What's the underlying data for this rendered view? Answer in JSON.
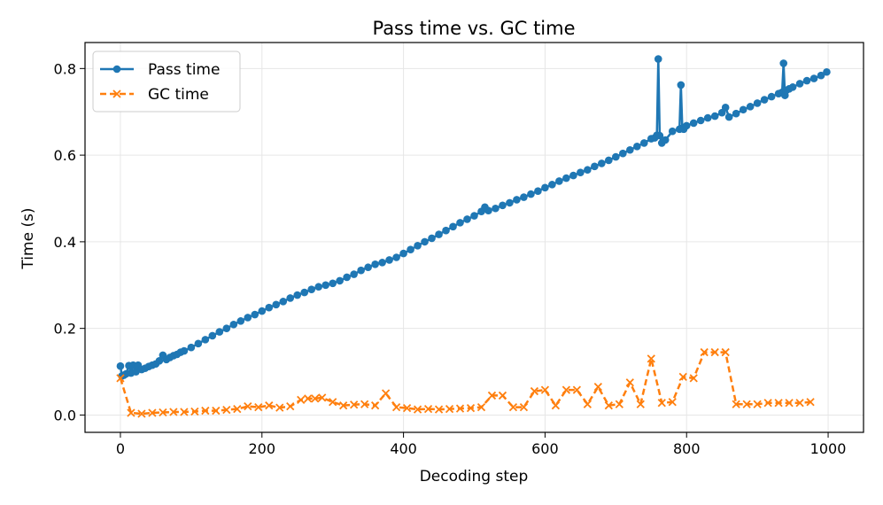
{
  "chart_data": {
    "type": "line",
    "title": "Pass time vs. GC time",
    "xlabel": "Decoding step",
    "ylabel": "Time (s)",
    "xlim": [
      -50,
      1050
    ],
    "ylim": [
      -0.04,
      0.86
    ],
    "xticks": [
      0,
      200,
      400,
      600,
      800,
      1000
    ],
    "yticks": [
      0.0,
      0.2,
      0.4,
      0.6,
      0.8
    ],
    "grid": true,
    "legend_position": "top-left",
    "series": [
      {
        "name": "Pass time",
        "color": "#1f77b4",
        "style": "solid",
        "marker": "circle",
        "x": [
          0,
          2,
          5,
          8,
          12,
          15,
          18,
          22,
          25,
          30,
          35,
          40,
          45,
          50,
          55,
          60,
          65,
          70,
          75,
          80,
          85,
          90,
          100,
          110,
          120,
          130,
          140,
          150,
          160,
          170,
          180,
          190,
          200,
          210,
          220,
          230,
          240,
          250,
          260,
          270,
          280,
          290,
          300,
          310,
          320,
          330,
          340,
          350,
          360,
          370,
          380,
          390,
          400,
          410,
          420,
          430,
          440,
          450,
          460,
          470,
          480,
          490,
          500,
          510,
          515,
          520,
          530,
          540,
          550,
          560,
          570,
          580,
          590,
          600,
          610,
          620,
          630,
          640,
          650,
          660,
          670,
          680,
          690,
          700,
          710,
          720,
          730,
          740,
          750,
          755,
          758,
          760,
          762,
          765,
          770,
          780,
          790,
          792,
          794,
          796,
          800,
          810,
          820,
          830,
          840,
          850,
          855,
          860,
          870,
          880,
          890,
          900,
          910,
          920,
          930,
          935,
          937,
          939,
          941,
          945,
          950,
          960,
          970,
          980,
          990,
          998
        ],
        "y": [
          0.113,
          0.09,
          0.092,
          0.095,
          0.114,
          0.097,
          0.115,
          0.1,
          0.115,
          0.105,
          0.108,
          0.112,
          0.115,
          0.118,
          0.125,
          0.138,
          0.128,
          0.133,
          0.137,
          0.14,
          0.145,
          0.148,
          0.156,
          0.165,
          0.174,
          0.183,
          0.192,
          0.2,
          0.209,
          0.217,
          0.225,
          0.232,
          0.24,
          0.248,
          0.255,
          0.262,
          0.27,
          0.277,
          0.283,
          0.29,
          0.296,
          0.3,
          0.304,
          0.31,
          0.318,
          0.325,
          0.334,
          0.341,
          0.348,
          0.352,
          0.358,
          0.364,
          0.373,
          0.382,
          0.391,
          0.4,
          0.408,
          0.417,
          0.426,
          0.435,
          0.444,
          0.452,
          0.46,
          0.47,
          0.48,
          0.472,
          0.477,
          0.484,
          0.49,
          0.497,
          0.503,
          0.51,
          0.517,
          0.525,
          0.532,
          0.54,
          0.547,
          0.553,
          0.56,
          0.566,
          0.574,
          0.581,
          0.588,
          0.596,
          0.604,
          0.612,
          0.62,
          0.628,
          0.638,
          0.64,
          0.646,
          0.822,
          0.645,
          0.628,
          0.635,
          0.655,
          0.66,
          0.762,
          0.662,
          0.66,
          0.668,
          0.674,
          0.68,
          0.686,
          0.69,
          0.698,
          0.71,
          0.688,
          0.696,
          0.705,
          0.712,
          0.72,
          0.728,
          0.735,
          0.742,
          0.745,
          0.812,
          0.738,
          0.75,
          0.753,
          0.757,
          0.765,
          0.772,
          0.777,
          0.784,
          0.792
        ]
      },
      {
        "name": "GC time",
        "color": "#ff7f0e",
        "style": "dashed",
        "marker": "x",
        "x": [
          0,
          15,
          30,
          45,
          60,
          75,
          90,
          105,
          120,
          135,
          150,
          165,
          180,
          195,
          210,
          225,
          240,
          255,
          265,
          275,
          285,
          300,
          315,
          330,
          345,
          360,
          375,
          390,
          405,
          420,
          435,
          450,
          465,
          480,
          495,
          510,
          525,
          540,
          555,
          570,
          585,
          600,
          615,
          630,
          645,
          660,
          675,
          690,
          705,
          720,
          735,
          750,
          765,
          780,
          795,
          810,
          825,
          840,
          855,
          870,
          885,
          900,
          915,
          930,
          945,
          960,
          975
        ],
        "y": [
          0.085,
          0.005,
          0.003,
          0.005,
          0.006,
          0.007,
          0.007,
          0.008,
          0.01,
          0.01,
          0.012,
          0.014,
          0.02,
          0.018,
          0.022,
          0.017,
          0.02,
          0.035,
          0.038,
          0.038,
          0.04,
          0.03,
          0.022,
          0.024,
          0.025,
          0.022,
          0.05,
          0.018,
          0.016,
          0.013,
          0.014,
          0.013,
          0.014,
          0.015,
          0.016,
          0.018,
          0.045,
          0.045,
          0.018,
          0.018,
          0.055,
          0.058,
          0.022,
          0.058,
          0.058,
          0.025,
          0.065,
          0.022,
          0.025,
          0.075,
          0.025,
          0.13,
          0.028,
          0.03,
          0.088,
          0.085,
          0.145,
          0.145,
          0.145,
          0.025,
          0.025,
          0.025,
          0.028,
          0.028,
          0.028,
          0.028,
          0.03
        ]
      }
    ]
  }
}
